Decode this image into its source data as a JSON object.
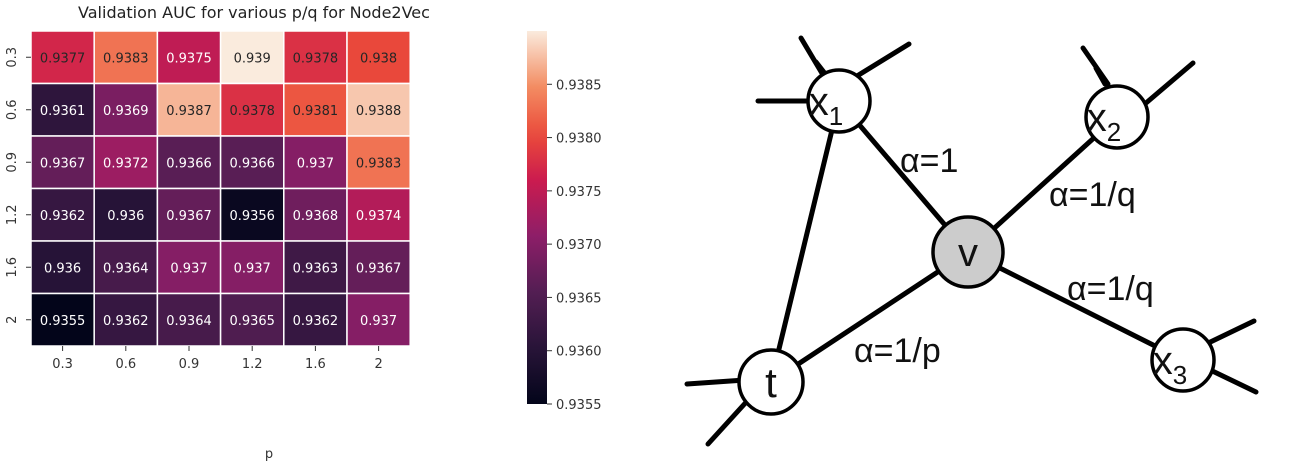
{
  "chart_data": {
    "type": "heatmap",
    "title": "Validation AUC for various p/q for Node2Vec",
    "xlabel": "p",
    "ylabel": "",
    "x_ticks": [
      "0.3",
      "0.6",
      "0.9",
      "1.2",
      "1.6",
      "2"
    ],
    "y_ticks": [
      "0.3",
      "0.6",
      "0.9",
      "1.2",
      "1.6",
      "2"
    ],
    "values": [
      [
        0.9377,
        0.9383,
        0.9375,
        0.939,
        0.9378,
        0.938
      ],
      [
        0.9361,
        0.9369,
        0.9387,
        0.9378,
        0.9381,
        0.9388
      ],
      [
        0.9367,
        0.9372,
        0.9366,
        0.9366,
        0.937,
        0.9383
      ],
      [
        0.9362,
        0.936,
        0.9367,
        0.9356,
        0.9368,
        0.9374
      ],
      [
        0.936,
        0.9364,
        0.937,
        0.937,
        0.9363,
        0.9367
      ],
      [
        0.9355,
        0.9362,
        0.9364,
        0.9365,
        0.9362,
        0.937
      ]
    ],
    "cell_labels": [
      [
        "0.9377",
        "0.9383",
        "0.9375",
        "0.939",
        "0.9378",
        "0.938"
      ],
      [
        "0.9361",
        "0.9369",
        "0.9387",
        "0.9378",
        "0.9381",
        "0.9388"
      ],
      [
        "0.9367",
        "0.9372",
        "0.9366",
        "0.9366",
        "0.937",
        "0.9383"
      ],
      [
        "0.9362",
        "0.936",
        "0.9367",
        "0.9356",
        "0.9368",
        "0.9374"
      ],
      [
        "0.936",
        "0.9364",
        "0.937",
        "0.937",
        "0.9363",
        "0.9367"
      ],
      [
        "0.9355",
        "0.9362",
        "0.9364",
        "0.9365",
        "0.9362",
        "0.937"
      ]
    ],
    "colorbar": {
      "range": [
        0.9355,
        0.939
      ],
      "ticks": [
        "0.9355",
        "0.9360",
        "0.9365",
        "0.9370",
        "0.9375",
        "0.9380",
        "0.9385"
      ],
      "colormap": "rocket"
    }
  },
  "diagram": {
    "nodes": [
      {
        "id": "x1",
        "base": "x",
        "sub": "1",
        "fill": "#ffffff"
      },
      {
        "id": "x2",
        "base": "x",
        "sub": "2",
        "fill": "#ffffff"
      },
      {
        "id": "v",
        "label": "v",
        "fill": "#cccccc"
      },
      {
        "id": "t",
        "label": "t",
        "fill": "#ffffff"
      },
      {
        "id": "x3",
        "base": "x",
        "sub": "3",
        "fill": "#ffffff"
      }
    ],
    "edge_labels": {
      "v_x1": "α=1",
      "v_x2": "α=1/q",
      "v_x3": "α=1/q",
      "v_t": "α=1/p"
    }
  }
}
